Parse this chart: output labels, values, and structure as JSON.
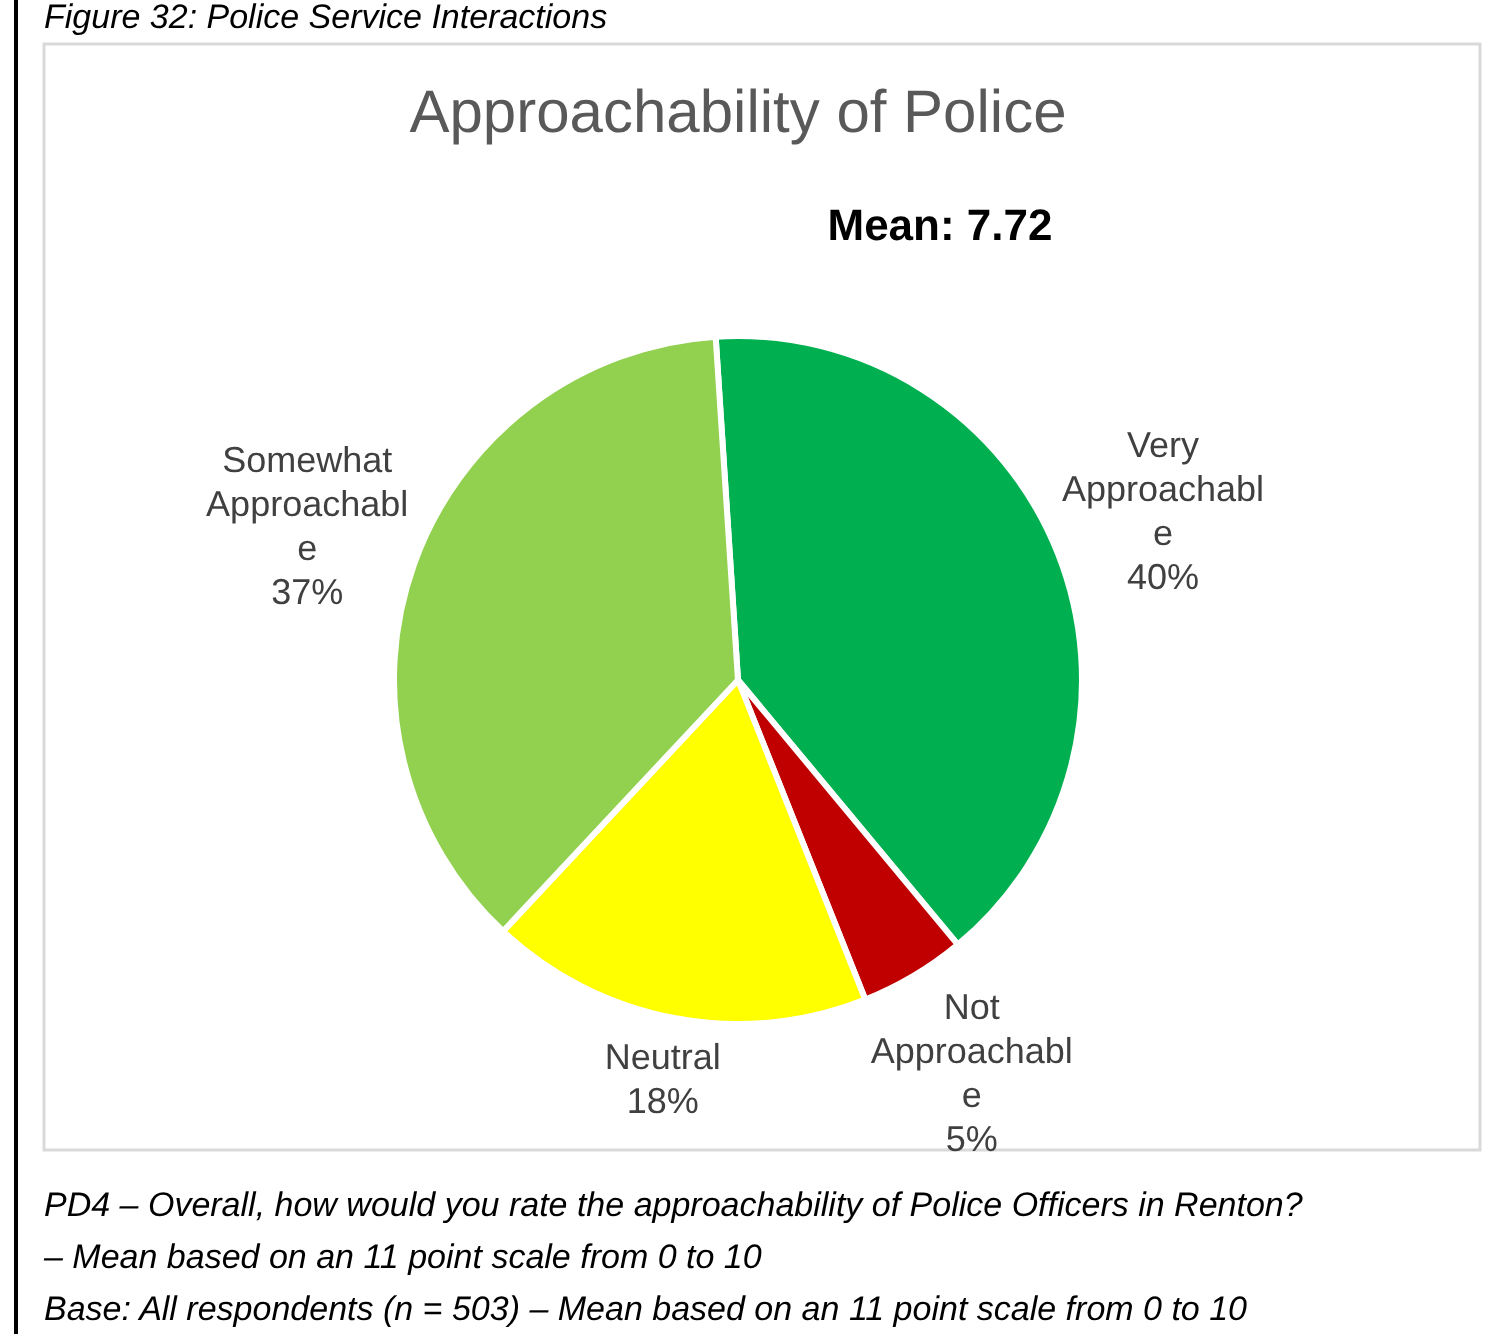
{
  "chart_data": {
    "type": "pie",
    "title": "Approachability of Police",
    "subtitle": "Mean: 7.72",
    "categories": [
      "Very Approachable",
      "Not Approachable",
      "Neutral",
      "Somewhat Approachable"
    ],
    "values": [
      40,
      5,
      18,
      37
    ],
    "colors": [
      "#00b050",
      "#c00000",
      "#ffff00",
      "#92d050"
    ],
    "value_labels": [
      "40%",
      "5%",
      "18%",
      "37%"
    ],
    "annotations": [
      "Figure 32: Police Service Interactions",
      "PD4 – Overall, how would you rate the approachability of Police Officers in Renton?",
      "– Mean based on an 11 point scale from 0 to 10",
      "Base: All respondents (n = 503) – Mean based on an 11 point scale from 0 to 10"
    ]
  }
}
